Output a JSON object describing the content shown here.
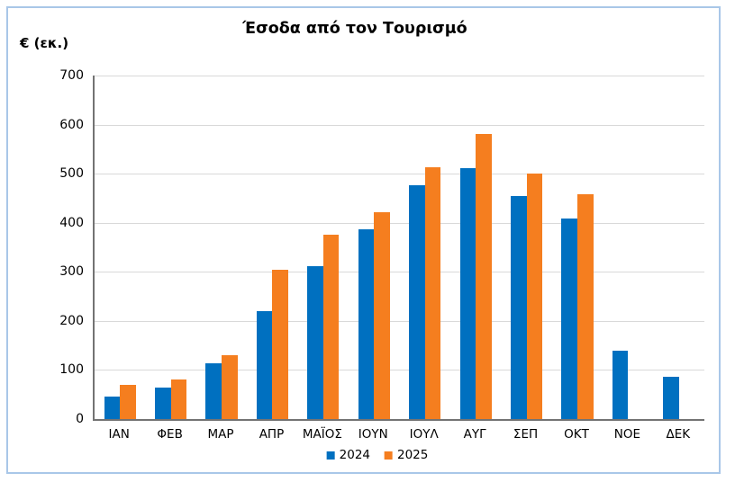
{
  "chart_data": {
    "type": "bar",
    "title": "Έσοδα από τον Τουρισμό",
    "y_axis_label": "€ (εκ.)",
    "categories": [
      "ΙΑΝ",
      "ΦΕΒ",
      "ΜΑΡ",
      "ΑΠΡ",
      "ΜΑΪΟΣ",
      "ΙΟΥΝ",
      "ΙΟΥΛ",
      "ΑΥΓ",
      "ΣΕΠ",
      "ΟΚΤ",
      "ΝΟΕ",
      "ΔΕΚ"
    ],
    "series": [
      {
        "name": "2024",
        "color": "#0070C0",
        "values": [
          45,
          65,
          113,
          220,
          312,
          387,
          476,
          511,
          454,
          409,
          140,
          87
        ]
      },
      {
        "name": "2025",
        "color": "#F57E1F",
        "values": [
          69,
          80,
          130,
          305,
          375,
          422,
          513,
          581,
          500,
          459,
          null,
          null
        ]
      }
    ],
    "ylim": [
      0,
      700
    ],
    "y_tick_step": 100,
    "y_ticks": [
      "0",
      "100",
      "200",
      "300",
      "400",
      "500",
      "600",
      "700"
    ],
    "grid": true,
    "legend_position": "bottom"
  },
  "style_colors": {
    "frame_border": "#A9C7E8",
    "axis_line": "#737373",
    "gridline": "#D9D9D9",
    "text": "#000000"
  }
}
